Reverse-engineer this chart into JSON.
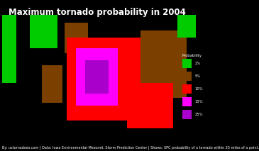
{
  "title": "Maximum tornado probability in 2004",
  "title_color": "white",
  "title_fontsize": 8.5,
  "background_color": "black",
  "legend_title": "Probability",
  "legend_items": [
    {
      "label": "2%",
      "color": "#00CC00"
    },
    {
      "label": "5%",
      "color": "#7B3F00"
    },
    {
      "label": "10%",
      "color": "#FF0000"
    },
    {
      "label": "15%",
      "color": "#FF00FF"
    },
    {
      "label": "25%",
      "color": "#AA00CC"
    }
  ],
  "state_colors": {
    "Washington": "#00CC00",
    "Oregon": "#00CC00",
    "California": "#00CC00",
    "Nevada": "#000000",
    "Idaho": "#000000",
    "Montana": "#00CC00",
    "Wyoming": "#000000",
    "Utah": "#000000",
    "Colorado": "#7B3F00",
    "Arizona": "#000000",
    "New Mexico": "#7B3F00",
    "North Dakota": "#7B3F00",
    "South Dakota": "#7B3F00",
    "Nebraska": "#FF0000",
    "Kansas": "#FF00FF",
    "Oklahoma": "#FF00FF",
    "Texas": "#FF0000",
    "Minnesota": "#FF0000",
    "Iowa": "#FF0000",
    "Missouri": "#FF00FF",
    "Arkansas": "#FF0000",
    "Louisiana": "#FF0000",
    "Wisconsin": "#FF0000",
    "Illinois": "#FF00FF",
    "Mississippi": "#FF0000",
    "Michigan": "#FF0000",
    "Indiana": "#FF00FF",
    "Ohio": "#FF0000",
    "Kentucky": "#FF0000",
    "Tennessee": "#FF0000",
    "Alabama": "#FF0000",
    "Georgia": "#FF0000",
    "Florida": "#7B3F00",
    "South Carolina": "#FF0000",
    "North Carolina": "#7B3F00",
    "Virginia": "#7B3F00",
    "West Virginia": "#7B3F00",
    "Pennsylvania": "#7B3F00",
    "New York": "#7B3F00",
    "Vermont": "#00CC00",
    "New Hampshire": "#00CC00",
    "Maine": "#00CC00",
    "Massachusetts": "#00CC00",
    "Rhode Island": "#00CC00",
    "Connecticut": "#00CC00",
    "New Jersey": "#7B3F00",
    "Delaware": "#7B3F00",
    "Maryland": "#7B3F00",
    "Alaska": "#000000",
    "Hawaii": "#000000"
  },
  "dot_states_15": [
    "Kansas",
    "Oklahoma",
    "Missouri",
    "Illinois",
    "Indiana"
  ],
  "dot_states_25": [
    "Kansas",
    "Oklahoma",
    "Missouri"
  ],
  "footnote": "By: ustornadoes.com | Data: Iowa Environmental Mesonet, Storm Prediction Center | Shows: SPC probability of a tornado within 25 miles of a point.",
  "footnote_color": "white",
  "footnote_fontsize": 3.5,
  "map_extent": [
    -125,
    -66.5,
    20,
    50
  ]
}
